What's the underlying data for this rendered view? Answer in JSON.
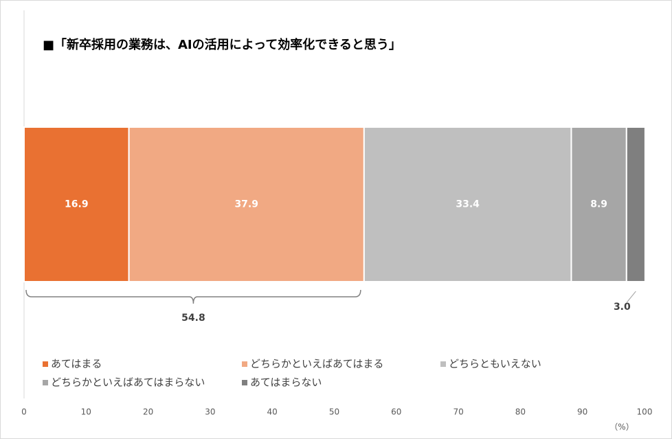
{
  "chart_data": {
    "type": "stacked-bar",
    "orientation": "horizontal",
    "title": "■「新卒採用の業務は、AIの活用によって効率化できると思う」",
    "categories": [
      null
    ],
    "series": [
      {
        "name": "あてはまる",
        "color": "#e97132",
        "values": [
          16.9
        ]
      },
      {
        "name": "どちらかといえばあてはまる",
        "color": "#f1a983",
        "values": [
          37.9
        ]
      },
      {
        "name": "どちらともいえない",
        "color": "#bfbfbf",
        "values": [
          33.4
        ]
      },
      {
        "name": "どちらかといえばあてはまらない",
        "color": "#a6a6a6",
        "values": [
          8.9
        ]
      },
      {
        "name": "あてはまらない",
        "color": "#7f7f7f",
        "values": [
          3
        ],
        "value_labels": [
          "3.0"
        ]
      }
    ],
    "annotations": [
      54.8
    ],
    "xlim": [
      0,
      100
    ],
    "xticks": [
      0,
      10,
      20,
      30,
      40,
      50,
      60,
      70,
      80,
      90,
      100
    ],
    "x_label": "（%）",
    "grid": false
  }
}
